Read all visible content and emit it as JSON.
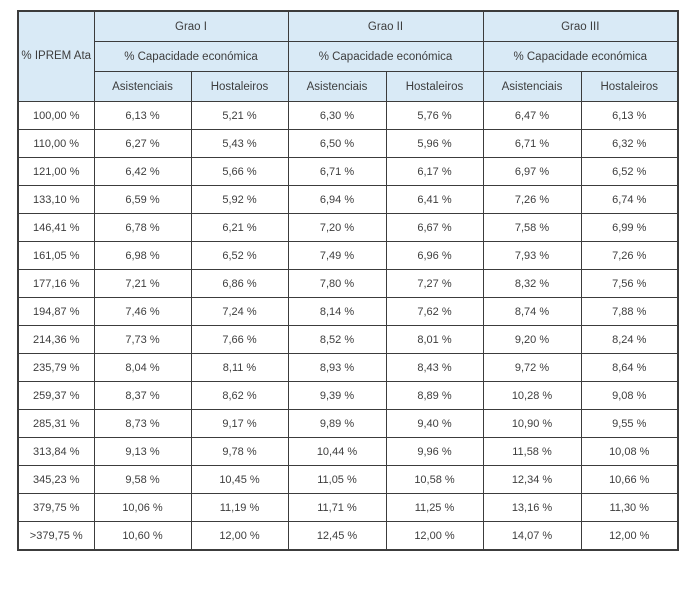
{
  "table": {
    "iprem_header": "% IPREM Ata",
    "capacity_header": "% Capacidade económica",
    "groups": [
      {
        "label": "Grao I"
      },
      {
        "label": "Grao II"
      },
      {
        "label": "Grao III"
      }
    ],
    "subheaders": [
      "Asistenciais",
      "Hostaleiros"
    ],
    "rows": [
      [
        "100,00 %",
        "6,13 %",
        "5,21 %",
        "6,30 %",
        "5,76 %",
        "6,47 %",
        "6,13 %"
      ],
      [
        "110,00 %",
        "6,27 %",
        "5,43 %",
        "6,50 %",
        "5,96 %",
        "6,71 %",
        "6,32 %"
      ],
      [
        "121,00 %",
        "6,42 %",
        "5,66 %",
        "6,71 %",
        "6,17 %",
        "6,97 %",
        "6,52 %"
      ],
      [
        "133,10 %",
        "6,59 %",
        "5,92 %",
        "6,94 %",
        "6,41 %",
        "7,26 %",
        "6,74 %"
      ],
      [
        "146,41 %",
        "6,78 %",
        "6,21 %",
        "7,20 %",
        "6,67 %",
        "7,58 %",
        "6,99 %"
      ],
      [
        "161,05 %",
        "6,98 %",
        "6,52 %",
        "7,49 %",
        "6,96 %",
        "7,93 %",
        "7,26 %"
      ],
      [
        "177,16 %",
        "7,21 %",
        "6,86 %",
        "7,80 %",
        "7,27 %",
        "8,32 %",
        "7,56 %"
      ],
      [
        "194,87 %",
        "7,46 %",
        "7,24 %",
        "8,14 %",
        "7,62 %",
        "8,74 %",
        "7,88 %"
      ],
      [
        "214,36 %",
        "7,73 %",
        "7,66 %",
        "8,52 %",
        "8,01 %",
        "9,20 %",
        "8,24 %"
      ],
      [
        "235,79 %",
        "8,04 %",
        "8,11 %",
        "8,93 %",
        "8,43 %",
        "9,72 %",
        "8,64 %"
      ],
      [
        "259,37 %",
        "8,37 %",
        "8,62 %",
        "9,39 %",
        "8,89 %",
        "10,28 %",
        "9,08 %"
      ],
      [
        "285,31 %",
        "8,73 %",
        "9,17 %",
        "9,89 %",
        "9,40 %",
        "10,90 %",
        "9,55 %"
      ],
      [
        "313,84 %",
        "9,13 %",
        "9,78 %",
        "10,44 %",
        "9,96 %",
        "11,58 %",
        "10,08 %"
      ],
      [
        "345,23 %",
        "9,58 %",
        "10,45 %",
        "11,05 %",
        "10,58 %",
        "12,34 %",
        "10,66 %"
      ],
      [
        "379,75 %",
        "10,06 %",
        "11,19 %",
        "11,71 %",
        "11,25 %",
        "13,16 %",
        "11,30 %"
      ],
      [
        ">379,75 %",
        "10,60 %",
        "12,00 %",
        "12,45 %",
        "12,00 %",
        "14,07 %",
        "12,00 %"
      ]
    ]
  },
  "colors": {
    "header_bg": "#d9eaf6",
    "border": "#3c3c3c",
    "text": "#3d3d3d",
    "page_bg": "#ffffff"
  }
}
